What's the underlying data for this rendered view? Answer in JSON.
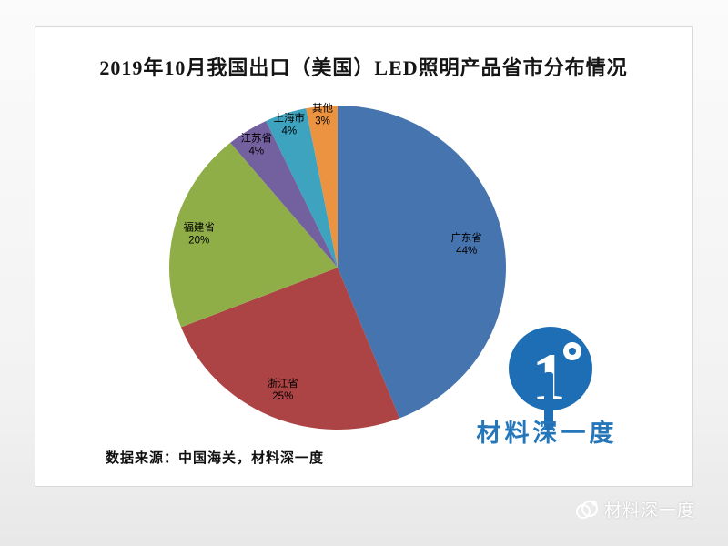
{
  "title": "2019年10月我国出口（美国）LED照明产品省市分布情况",
  "source_note": "数据来源：中国海关，材料深一度",
  "logo": {
    "symbol": "1",
    "degree_symbol": "°",
    "text": "材料深一度",
    "color": "#1d6eb4",
    "text_color": "#2677b9"
  },
  "watermark": {
    "text": "材料深一度"
  },
  "chart_data": {
    "type": "pie",
    "title": "2019年10月我国出口（美国）LED照明产品省市分布情况",
    "legend_position": "none",
    "labels_on_slices": true,
    "start_angle_deg": 0,
    "direction": "clockwise",
    "total": 100,
    "slices": [
      {
        "label": "广东省",
        "value": 44,
        "pct_label": "44%",
        "color": "#4674ae",
        "label_r": 0.78
      },
      {
        "label": "浙江省",
        "value": 25,
        "pct_label": "25%",
        "color": "#ac4445",
        "label_r": 0.82
      },
      {
        "label": "福建省",
        "value": 20,
        "pct_label": "20%",
        "color": "#8fae47",
        "label_r": 0.85
      },
      {
        "label": "江苏省",
        "value": 4,
        "pct_label": "4%",
        "color": "#73609f",
        "label_r": 0.9
      },
      {
        "label": "上海市",
        "value": 4,
        "pct_label": "4%",
        "color": "#3da3be",
        "label_r": 0.93
      },
      {
        "label": "其他",
        "value": 3,
        "pct_label": "3%",
        "color": "#eb9340",
        "label_r": 0.95
      }
    ]
  }
}
